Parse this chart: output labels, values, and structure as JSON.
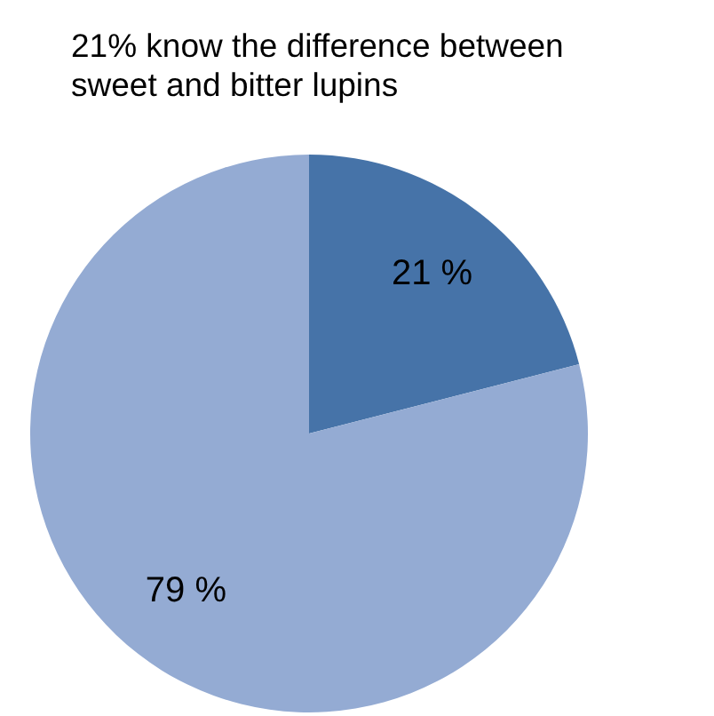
{
  "chart_data": {
    "type": "pie",
    "title": "21% know the difference between sweet and bitter lupins",
    "categories": [
      null,
      null
    ],
    "values": [
      21,
      79
    ],
    "colors": [
      "#4673a8",
      "#94abd3"
    ],
    "value_labels": [
      "21 %",
      "79 %"
    ]
  }
}
